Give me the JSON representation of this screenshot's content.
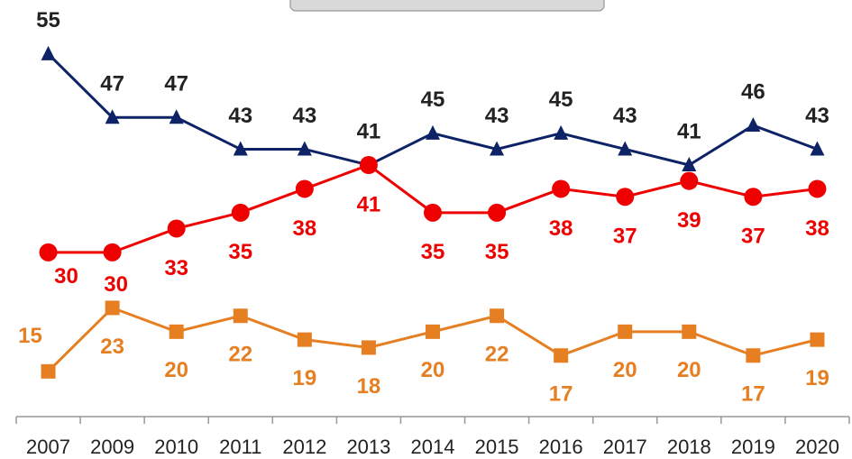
{
  "chart_data": {
    "type": "line",
    "categories": [
      "2007",
      "2009",
      "2010",
      "2011",
      "2012",
      "2013",
      "2014",
      "2015",
      "2016",
      "2017",
      "2018",
      "2019",
      "2020"
    ],
    "series": [
      {
        "color": "#0d2366",
        "marker": "triangle",
        "values": [
          55,
          47,
          47,
          43,
          43,
          41,
          45,
          43,
          45,
          43,
          41,
          46,
          43
        ]
      },
      {
        "color": "#ee0000",
        "marker": "circle",
        "values": [
          30,
          30,
          33,
          35,
          38,
          41,
          35,
          35,
          38,
          37,
          39,
          37,
          38
        ]
      },
      {
        "color": "#e57f22",
        "marker": "square",
        "values": [
          15,
          23,
          20,
          22,
          19,
          18,
          20,
          22,
          17,
          20,
          20,
          17,
          19
        ]
      }
    ],
    "ylim": [
      9.3,
      61.8
    ]
  }
}
